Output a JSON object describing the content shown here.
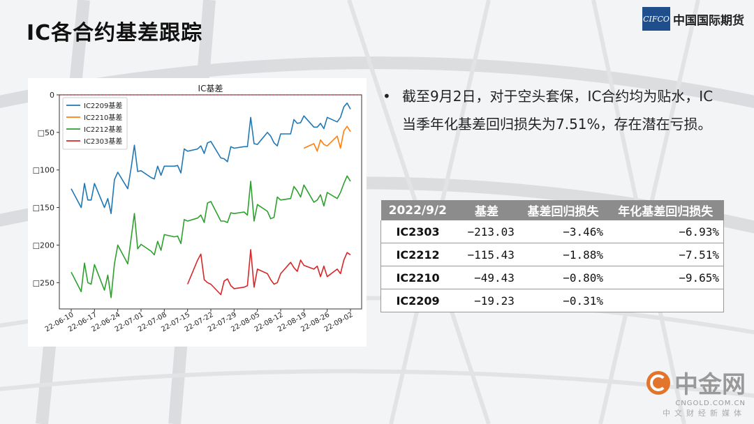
{
  "header": {
    "title": "IC各合约基差跟踪",
    "logo_mark": "CIFCO",
    "logo_text": "中国国际期货"
  },
  "bullet": {
    "text": "截至9月2日，对于空头套保，IC合约均为贴水，IC当季年化基差回归损失为7.51%，存在潜在亏损。"
  },
  "table": {
    "headers": [
      "2022/9/2",
      "基差",
      "基差回归损失",
      "年化基差回归损失"
    ],
    "rows": [
      [
        "IC2303",
        "−213.03",
        "−3.46%",
        "−6.93%"
      ],
      [
        "IC2212",
        "−115.43",
        "−1.88%",
        "−7.51%"
      ],
      [
        "IC2210",
        "−49.43",
        "−0.80%",
        "−9.65%"
      ],
      [
        "IC2209",
        "−19.23",
        "−0.31%",
        ""
      ]
    ]
  },
  "watermark": {
    "name": "中金网",
    "url": "CNGOLD.COM.CN",
    "tagline": "中文财经新媒体"
  },
  "chart_data": {
    "type": "line",
    "title": "IC基差",
    "xlabel": "",
    "ylabel": "",
    "ylim": [
      -285,
      0
    ],
    "y_ticks": [
      0,
      -50,
      -100,
      -150,
      -200,
      -250
    ],
    "y_tick_labels": [
      "0",
      "□50",
      "□100",
      "□150",
      "□200",
      "□250"
    ],
    "x_range": [
      "2022-06-10",
      "2022-09-02"
    ],
    "x_ticks": [
      "22-06-10",
      "22-06-17",
      "22-06-24",
      "22-07-01",
      "22-07-08",
      "22-07-15",
      "22-07-22",
      "22-07-29",
      "22-08-05",
      "22-08-12",
      "22-08-19",
      "22-08-26",
      "22-09-02"
    ],
    "legend_position": "top-left",
    "reference_line": 0,
    "colors": {
      "IC2209": "#1f77b4",
      "IC2210": "#ff7f0e",
      "IC2212": "#2ca02c",
      "IC2303": "#d62728",
      "reference": "#b22222"
    },
    "series": [
      {
        "name": "IC2209基差",
        "x": [
          "2022-06-10",
          "2022-06-13",
          "2022-06-14",
          "2022-06-15",
          "2022-06-16",
          "2022-06-17",
          "2022-06-20",
          "2022-06-21",
          "2022-06-22",
          "2022-06-23",
          "2022-06-24",
          "2022-06-27",
          "2022-06-28",
          "2022-06-29",
          "2022-06-30",
          "2022-07-01",
          "2022-07-04",
          "2022-07-05",
          "2022-07-06",
          "2022-07-07",
          "2022-07-08",
          "2022-07-11",
          "2022-07-12",
          "2022-07-13",
          "2022-07-14",
          "2022-07-15",
          "2022-07-18",
          "2022-07-19",
          "2022-07-20",
          "2022-07-21",
          "2022-07-22",
          "2022-07-25",
          "2022-07-26",
          "2022-07-27",
          "2022-07-28",
          "2022-07-29",
          "2022-08-01",
          "2022-08-02",
          "2022-08-03",
          "2022-08-04",
          "2022-08-05",
          "2022-08-08",
          "2022-08-09",
          "2022-08-10",
          "2022-08-11",
          "2022-08-12",
          "2022-08-15",
          "2022-08-16",
          "2022-08-17",
          "2022-08-18",
          "2022-08-19",
          "2022-08-22",
          "2022-08-23",
          "2022-08-24",
          "2022-08-25",
          "2022-08-26",
          "2022-08-29",
          "2022-08-30",
          "2022-08-31",
          "2022-09-01",
          "2022-09-02"
        ],
        "values": [
          -125,
          -150,
          -118,
          -140,
          -140,
          -118,
          -150,
          -138,
          -158,
          -113,
          -103,
          -125,
          -98,
          -67,
          -102,
          -101,
          -110,
          -112,
          -95,
          -107,
          -95,
          -95,
          -94,
          -104,
          -72,
          -75,
          -72,
          -68,
          -78,
          -64,
          -62,
          -84,
          -85,
          -89,
          -69,
          -71,
          -69,
          -69,
          -30,
          -65,
          -66,
          -50,
          -55,
          -64,
          -68,
          -52,
          -52,
          -33,
          -38,
          -37,
          -28,
          -43,
          -43,
          -38,
          -45,
          -30,
          -36,
          -30,
          -16,
          -11,
          -19
        ]
      },
      {
        "name": "IC2210基差",
        "x": [
          "2022-08-19",
          "2022-08-22",
          "2022-08-23",
          "2022-08-24",
          "2022-08-25",
          "2022-08-26",
          "2022-08-29",
          "2022-08-30",
          "2022-08-31",
          "2022-09-01",
          "2022-09-02"
        ],
        "values": [
          -71,
          -65,
          -75,
          -60,
          -66,
          -68,
          -55,
          -71,
          -48,
          -42,
          -49
        ]
      },
      {
        "name": "IC2212基差",
        "x": [
          "2022-06-10",
          "2022-06-13",
          "2022-06-14",
          "2022-06-15",
          "2022-06-16",
          "2022-06-17",
          "2022-06-20",
          "2022-06-21",
          "2022-06-22",
          "2022-06-23",
          "2022-06-24",
          "2022-06-27",
          "2022-06-28",
          "2022-06-29",
          "2022-06-30",
          "2022-07-01",
          "2022-07-04",
          "2022-07-05",
          "2022-07-06",
          "2022-07-07",
          "2022-07-08",
          "2022-07-11",
          "2022-07-12",
          "2022-07-13",
          "2022-07-14",
          "2022-07-15",
          "2022-07-18",
          "2022-07-19",
          "2022-07-20",
          "2022-07-21",
          "2022-07-22",
          "2022-07-25",
          "2022-07-26",
          "2022-07-27",
          "2022-07-28",
          "2022-07-29",
          "2022-08-01",
          "2022-08-02",
          "2022-08-03",
          "2022-08-04",
          "2022-08-05",
          "2022-08-08",
          "2022-08-09",
          "2022-08-10",
          "2022-08-11",
          "2022-08-12",
          "2022-08-15",
          "2022-08-16",
          "2022-08-17",
          "2022-08-18",
          "2022-08-19",
          "2022-08-22",
          "2022-08-23",
          "2022-08-24",
          "2022-08-25",
          "2022-08-26",
          "2022-08-29",
          "2022-08-30",
          "2022-08-31",
          "2022-09-01",
          "2022-09-02"
        ],
        "values": [
          -236,
          -262,
          -224,
          -250,
          -252,
          -226,
          -260,
          -240,
          -270,
          -225,
          -200,
          -225,
          -192,
          -158,
          -205,
          -199,
          -208,
          -213,
          -195,
          -207,
          -186,
          -189,
          -188,
          -198,
          -166,
          -168,
          -164,
          -160,
          -170,
          -144,
          -142,
          -168,
          -168,
          -170,
          -157,
          -158,
          -156,
          -160,
          -115,
          -168,
          -146,
          -155,
          -165,
          -163,
          -136,
          -140,
          -138,
          -122,
          -128,
          -136,
          -120,
          -143,
          -140,
          -133,
          -148,
          -130,
          -138,
          -130,
          -118,
          -108,
          -115
        ]
      },
      {
        "name": "IC2303基差",
        "x": [
          "2022-07-15",
          "2022-07-18",
          "2022-07-19",
          "2022-07-20",
          "2022-07-21",
          "2022-07-22",
          "2022-07-25",
          "2022-07-26",
          "2022-07-27",
          "2022-07-28",
          "2022-07-29",
          "2022-08-01",
          "2022-08-02",
          "2022-08-03",
          "2022-08-04",
          "2022-08-05",
          "2022-08-08",
          "2022-08-09",
          "2022-08-10",
          "2022-08-11",
          "2022-08-12",
          "2022-08-15",
          "2022-08-16",
          "2022-08-17",
          "2022-08-18",
          "2022-08-19",
          "2022-08-22",
          "2022-08-23",
          "2022-08-24",
          "2022-08-25",
          "2022-08-26",
          "2022-08-29",
          "2022-08-30",
          "2022-08-31",
          "2022-09-01",
          "2022-09-02"
        ],
        "values": [
          -252,
          -220,
          -212,
          -246,
          -250,
          -252,
          -266,
          -248,
          -245,
          -254,
          -258,
          -256,
          -254,
          -206,
          -256,
          -232,
          -238,
          -246,
          -252,
          -250,
          -238,
          -223,
          -230,
          -235,
          -220,
          -227,
          -232,
          -228,
          -242,
          -228,
          -242,
          -232,
          -238,
          -220,
          -210,
          -213
        ]
      }
    ]
  }
}
